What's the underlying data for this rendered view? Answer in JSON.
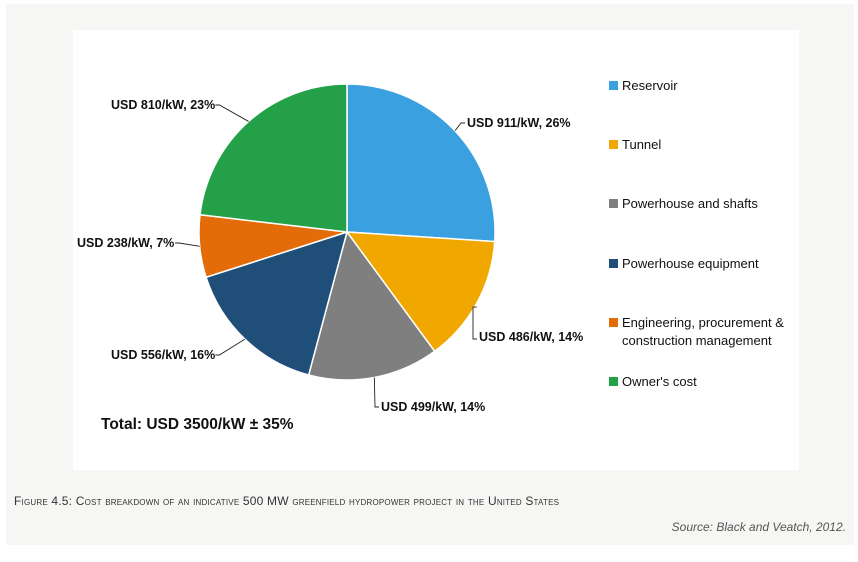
{
  "chart_data": {
    "type": "pie",
    "slices": [
      {
        "label": "Reservoir",
        "callout": "USD 911/kW,  26%",
        "value_usd_per_kw": 911,
        "percent": 26,
        "color": "#3aa0e0"
      },
      {
        "label": "Tunnel",
        "callout": "USD 486/kW,  14%",
        "value_usd_per_kw": 486,
        "percent": 14,
        "color": "#f0a800"
      },
      {
        "label": "Powerhouse and shafts",
        "callout": "USD 499/kW,  14%",
        "value_usd_per_kw": 499,
        "percent": 14,
        "color": "#7f7f7f"
      },
      {
        "label": "Powerhouse equipment",
        "callout": "USD 556/kW,  16%",
        "value_usd_per_kw": 556,
        "percent": 16,
        "color": "#1f4e79"
      },
      {
        "label": "Engineering, procurement & construction management",
        "legend_lines": [
          "Engineering, procurement &",
          "construction management"
        ],
        "callout": "USD 238/kW,  7%",
        "value_usd_per_kw": 238,
        "percent": 7,
        "color": "#e36c09"
      },
      {
        "label": "Owner's cost",
        "callout": "USD 810/kW,  23%",
        "value_usd_per_kw": 810,
        "percent": 23,
        "color": "#23a048"
      }
    ],
    "legend_placement": "right",
    "total_text": "Total: USD 3500/kW ± 35%"
  },
  "figure_caption": "Figure 4.5: Cost breakdown of an indicative 500 MW greenfield hydropower project in the United States",
  "source_text": "Source: Black and Veatch, 2012."
}
